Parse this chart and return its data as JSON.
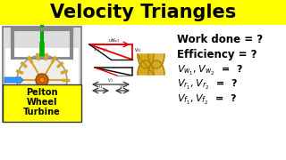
{
  "title": "Velocity Triangles",
  "title_bg": "#FFFF00",
  "title_color": "#000000",
  "title_fontsize": 15,
  "left_label_lines": [
    "Pelton",
    "Wheel",
    "Turbine"
  ],
  "left_label_bg": "#FFFF00",
  "bg_color": "#FFFFFF",
  "frame_color": "#999999",
  "spoke_color": "#DAA520",
  "hub_color": "#CC6600",
  "nozzle_color": "#3399FF",
  "shaft_color": "#00AA00",
  "tri_red": "#EE0000",
  "tri_black": "#111111",
  "bucket_color": "#DAA520",
  "text_color": "#000000"
}
